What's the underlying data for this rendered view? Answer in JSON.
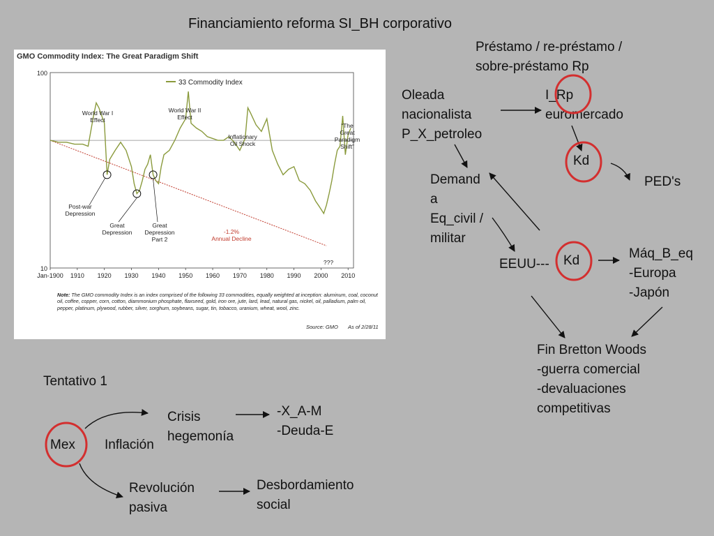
{
  "title": "Financiamiento reforma SI_BH corporativo",
  "chart_data": {
    "type": "line",
    "title": "GMO Commodity Index:  The Great Paradigm Shift",
    "legend": "33 Commodity Index",
    "legend_position": "top-center",
    "y_scale": "log",
    "ylim": [
      10,
      100
    ],
    "xlim": [
      1900,
      2012
    ],
    "ytick_labels": [
      "100",
      "10"
    ],
    "xtick_labels": [
      "Jan-1900",
      "1910",
      "1920",
      "1930",
      "1940",
      "1950",
      "1960",
      "1970",
      "1980",
      "1990",
      "2000",
      "2010"
    ],
    "grid": false,
    "series": [
      {
        "name": "33 Commodity Index",
        "color": "#8a9a3c",
        "x": [
          1900,
          1903,
          1906,
          1909,
          1912,
          1914,
          1916,
          1917,
          1918,
          1920,
          1921,
          1922,
          1924,
          1926,
          1928,
          1930,
          1931,
          1932,
          1933,
          1934,
          1935,
          1936,
          1937,
          1938,
          1939,
          1940,
          1941,
          1942,
          1944,
          1946,
          1948,
          1950,
          1951,
          1952,
          1954,
          1956,
          1958,
          1960,
          1962,
          1964,
          1966,
          1968,
          1970,
          1972,
          1973,
          1974,
          1976,
          1978,
          1980,
          1982,
          1984,
          1986,
          1988,
          1990,
          1992,
          1994,
          1996,
          1998,
          1999,
          2000,
          2001,
          2002,
          2003,
          2004,
          2005,
          2006,
          2007,
          2008,
          2009,
          2010,
          2011
        ],
        "values": [
          45,
          44,
          44,
          43,
          43,
          42,
          60,
          70,
          66,
          55,
          30,
          36,
          40,
          44,
          40,
          33,
          27,
          24,
          25,
          28,
          32,
          34,
          38,
          30,
          28,
          27,
          33,
          38,
          40,
          45,
          52,
          58,
          80,
          55,
          52,
          50,
          47,
          46,
          45,
          45,
          47,
          44,
          40,
          46,
          66,
          62,
          54,
          50,
          58,
          40,
          34,
          30,
          32,
          33,
          28,
          27,
          25,
          22,
          21,
          20,
          19,
          21,
          24,
          28,
          34,
          40,
          42,
          60,
          38,
          48,
          52
        ]
      }
    ],
    "annotations": [
      {
        "text": "World War I\nEffect",
        "x": 1915
      },
      {
        "text": "World War II\nEffect",
        "x": 1951
      },
      {
        "text": "Inflationary\nOil Shock",
        "x": 1973
      },
      {
        "text": "“The\nGreat\nParadigm\nShift”",
        "x": 2008
      },
      {
        "text": "Post-war\nDepression",
        "x": 1921
      },
      {
        "text": "Great\nDepression",
        "x": 1932
      },
      {
        "text": "Great\nDepression\nPart 2",
        "x": 1938
      },
      {
        "text": "-1.2%\nAnnual Decline",
        "x": 1973
      },
      {
        "text": "???",
        "x": 2002
      }
    ],
    "colors": {
      "trend": "#c0392b",
      "reference": "#888888",
      "series": "#8a9a3c",
      "annual_decline_text": "#c0392b"
    }
  },
  "chart_note": {
    "label": "Note:",
    "text": " The GMO commodity Index is an index comprised of the following 33 commodities, equally weighted at inception: aluminum, coal, coconut oil, coffee, copper, corn, cotton, diammonium phosphate, flaxseed, gold, iron ore, jute, lard, lead, natural gas, nickel, oil, palladium, palm oil, pepper, platinum, plywood, rubber, silver, sorghum, soybeans, sugar, tin, tobacco, uranium, wheat, wool, zinc.",
    "source": "Source:  GMO",
    "as_of": "As of 2/28/11"
  },
  "labels": {
    "prestamo": "Préstamo / re-préstamo /\n sobre-préstamo Rp",
    "oleada": "Oleada\nnacionalista\nP_X_petroleo",
    "irp": "I_Rp\neuromercado",
    "kd_top": "Kd",
    "peds": "PED's",
    "demanda": "Demand\na\nEq_civil /\nmilitar",
    "eeuu": "EEUU---",
    "kd_mid": "Kd",
    "maq": "Máq_B_eq\n-Europa\n-Japón",
    "fin_bretton": "Fin Bretton Woods\n-guerra comercial\n-devaluaciones\ncompetitivas",
    "tentativo": "Tentativo 1",
    "mex": "Mex",
    "inflacion": "Inflación",
    "crisis": "Crisis\nhegemonía",
    "xam": "-X_A-M\n-Deuda-E",
    "revolucion": "Revolución\npasiva",
    "desbordamiento": "Desbordamiento\nsocial"
  },
  "colors": {
    "background": "#b5b5b5",
    "highlight_circle": "#d32f2f"
  }
}
